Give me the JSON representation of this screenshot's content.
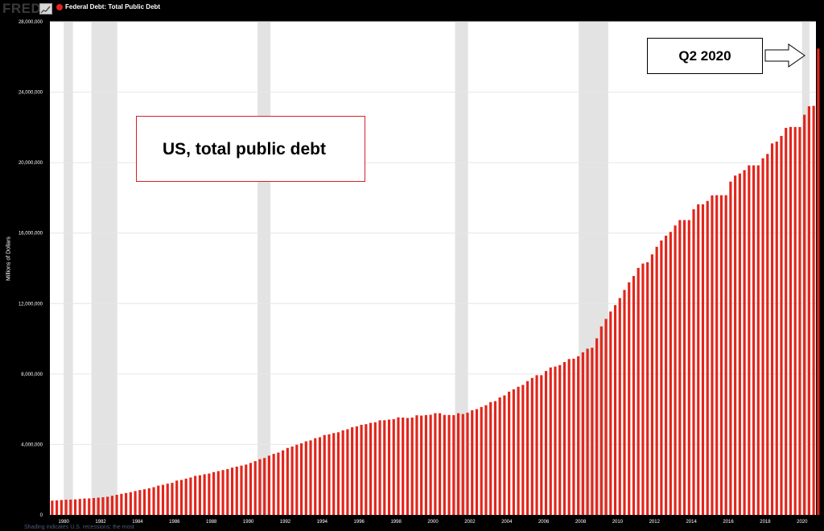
{
  "header": {
    "logo_text": "FRED",
    "logo_icon": "fred-chart-icon",
    "legend_label": "Federal Debt: Total Public Debt",
    "legend_color": "#e1251b"
  },
  "annotations": {
    "title_box": "US, total public debt",
    "q2_box": "Q2 2020"
  },
  "footnote": "Shading indicates U.S. recessions; the most",
  "chart_data": {
    "type": "bar",
    "ylabel": "Millions of Dollars",
    "ylim": [
      0,
      28000000
    ],
    "yticks": [
      0,
      4000000,
      8000000,
      12000000,
      16000000,
      20000000,
      24000000,
      28000000
    ],
    "ytick_labels": [
      "0",
      "4,000,000",
      "8,000,000",
      "12,000,000",
      "16,000,000",
      "20,000,000",
      "24,000,000",
      "28,000,000"
    ],
    "xlim": [
      1979.25,
      2020.75
    ],
    "xticks": [
      1980,
      1982,
      1984,
      1986,
      1988,
      1990,
      1992,
      1994,
      1996,
      1998,
      2000,
      2002,
      2004,
      2006,
      2008,
      2010,
      2012,
      2014,
      2016,
      2018,
      2020
    ],
    "xtick_labels": [
      "1980",
      "1982",
      "1984",
      "1986",
      "1988",
      "1990",
      "1992",
      "1994",
      "1996",
      "1998",
      "2000",
      "2002",
      "2004",
      "2006",
      "2008",
      "2010",
      "2012",
      "2014",
      "2016",
      "2018",
      "2020"
    ],
    "frequency": "quarterly",
    "first_period": "1979-Q2",
    "bar_color": "#e1251b",
    "recessions": [
      [
        1980.0,
        1980.5
      ],
      [
        1981.5,
        1982.9
      ],
      [
        1990.5,
        1991.2
      ],
      [
        2001.2,
        2001.9
      ],
      [
        2007.9,
        2009.5
      ],
      [
        2020.0,
        2020.4
      ]
    ],
    "series": [
      {
        "name": "Federal Debt: Total Public Debt",
        "values": [
          812000,
          827000,
          846000,
          863000,
          870000,
          882000,
          908000,
          930000,
          937000,
          957000,
          982000,
          1004000,
          1031000,
          1084000,
          1143000,
          1197000,
          1244000,
          1289000,
          1354000,
          1410000,
          1455000,
          1512000,
          1573000,
          1662000,
          1710000,
          1774000,
          1821000,
          1950000,
          1986000,
          2059000,
          2125000,
          2215000,
          2250000,
          2310000,
          2350000,
          2431000,
          2487000,
          2547000,
          2602000,
          2684000,
          2742000,
          2799000,
          2857000,
          2953000,
          3054000,
          3164000,
          3233000,
          3364000,
          3465000,
          3538000,
          3665000,
          3801000,
          3881000,
          3985000,
          4065000,
          4177000,
          4231000,
          4353000,
          4411000,
          4536000,
          4576000,
          4646000,
          4692000,
          4801000,
          4864000,
          4974000,
          5023000,
          5117000,
          5153000,
          5225000,
          5260000,
          5370000,
          5376000,
          5414000,
          5437000,
          5540000,
          5526000,
          5502000,
          5526000,
          5656000,
          5639000,
          5668000,
          5686000,
          5776000,
          5773000,
          5674000,
          5674000,
          5662000,
          5773000,
          5727000,
          5807000,
          5943000,
          6006000,
          6126000,
          6228000,
          6405000,
          6460000,
          6670000,
          6783000,
          6998000,
          7131000,
          7274000,
          7379000,
          7596000,
          7777000,
          7933000,
          7932000,
          8170000,
          8371000,
          8420000,
          8507000,
          8680000,
          8849000,
          8868000,
          9007000,
          9229000,
          9437000,
          9492000,
          10025000,
          10700000,
          11127000,
          11545000,
          11910000,
          12311000,
          12773000,
          13202000,
          13562000,
          14025000,
          14270000,
          14343000,
          14790000,
          15223000,
          15582000,
          15856000,
          16066000,
          16433000,
          16739000,
          16738000,
          16738000,
          17352000,
          17633000,
          17632000,
          17824000,
          18141000,
          18152000,
          18151000,
          18151000,
          18922000,
          19265000,
          19382000,
          19573000,
          19845000,
          19845000,
          19845000,
          20245000,
          20493000,
          21089000,
          21195000,
          21516000,
          21974000,
          22027000,
          22023000,
          22023000,
          22719000,
          23201000,
          23224000,
          26477000
        ]
      }
    ]
  }
}
